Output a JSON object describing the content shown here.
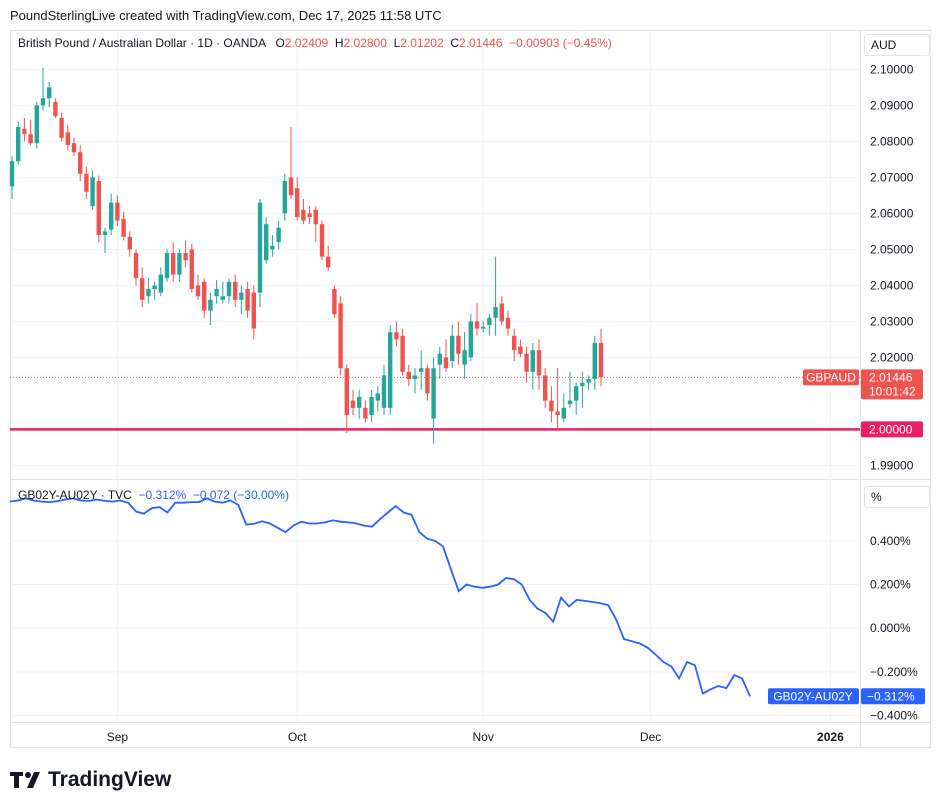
{
  "header": {
    "title": "PoundSterlingLive created with TradingView.com, Dec 17, 2025 11:58 UTC"
  },
  "main_pane": {
    "instrument": "British Pound / Australian Dollar · 1D · OANDA",
    "o_label": "O",
    "o_value": "2.02409",
    "h_label": "H",
    "h_value": "2.02800",
    "l_label": "L",
    "l_value": "2.01202",
    "c_label": "C",
    "c_value": "2.01446",
    "change": "−0.00903 (−0.45%)",
    "unit": "AUD",
    "price_tag_name": "GBPAUD",
    "price_tag_value": "2.01446",
    "countdown": "10:01:42",
    "level_label": "2.00000"
  },
  "lower_pane": {
    "instrument": "GB02Y-AU02Y · TVC",
    "value": "−0.312%",
    "change": "−0.072 (−30.00%)",
    "unit": "%",
    "tag_name": "GB02Y-AU02Y",
    "tag_value": "−0.312%"
  },
  "brand": {
    "name": "TradingView"
  },
  "colors": {
    "up": "#26a69a",
    "down": "#ef5350",
    "line": "#2962ff",
    "level": "#e91e63"
  },
  "chart_data": [
    {
      "type": "candlestick",
      "title": "British Pound / Australian Dollar · 1D · OANDA",
      "x_ticks": [
        "Sep",
        "Oct",
        "Nov",
        "Dec",
        "2026"
      ],
      "y_ticks": [
        "2.10000",
        "2.09000",
        "2.08000",
        "2.07000",
        "2.06000",
        "2.05000",
        "2.04000",
        "2.03000",
        "2.02000",
        "1.99000"
      ],
      "ylim": [
        1.9865,
        2.104
      ],
      "horizontal_line": 2.0,
      "last_close": 2.01446,
      "ohlc": [
        [
          2.0675,
          2.076,
          2.064,
          2.0745
        ],
        [
          2.0745,
          2.0855,
          2.0735,
          2.084
        ],
        [
          2.0835,
          2.0865,
          2.08,
          2.082
        ],
        [
          2.082,
          2.086,
          2.079,
          2.0795
        ],
        [
          2.0795,
          2.091,
          2.078,
          2.09
        ],
        [
          2.09,
          2.1005,
          2.0885,
          2.092
        ],
        [
          2.092,
          2.0965,
          2.0895,
          2.095
        ],
        [
          2.091,
          2.092,
          2.0865,
          2.087
        ],
        [
          2.0865,
          2.088,
          2.08,
          2.081
        ],
        [
          2.0825,
          2.0845,
          2.0775,
          2.079
        ],
        [
          2.0795,
          2.081,
          2.076,
          2.077
        ],
        [
          2.077,
          2.079,
          2.069,
          2.071
        ],
        [
          2.071,
          2.073,
          2.064,
          2.066
        ],
        [
          2.062,
          2.072,
          2.061,
          2.07
        ],
        [
          2.069,
          2.0705,
          2.052,
          2.054
        ],
        [
          2.054,
          2.056,
          2.049,
          2.055
        ],
        [
          2.0555,
          2.0655,
          2.054,
          2.063
        ],
        [
          2.063,
          2.065,
          2.0565,
          2.058
        ],
        [
          2.0585,
          2.0605,
          2.0525,
          2.0535
        ],
        [
          2.0535,
          2.055,
          2.048,
          2.05
        ],
        [
          2.049,
          2.05,
          2.04,
          2.042
        ],
        [
          2.042,
          2.045,
          2.034,
          2.036
        ],
        [
          2.037,
          2.042,
          2.035,
          2.039
        ],
        [
          2.039,
          2.041,
          2.036,
          2.04
        ],
        [
          2.038,
          2.045,
          2.037,
          2.043
        ],
        [
          2.042,
          2.05,
          2.041,
          2.049
        ],
        [
          2.049,
          2.052,
          2.041,
          2.043
        ],
        [
          2.043,
          2.05,
          2.041,
          2.049
        ],
        [
          2.049,
          2.0525,
          2.045,
          2.047
        ],
        [
          2.05,
          2.0515,
          2.038,
          2.039
        ],
        [
          2.04,
          2.043,
          2.036,
          2.037
        ],
        [
          2.041,
          2.042,
          2.031,
          2.033
        ],
        [
          2.033,
          2.038,
          2.029,
          2.036
        ],
        [
          2.037,
          2.0415,
          2.035,
          2.039
        ],
        [
          2.036,
          2.041,
          2.035,
          2.037
        ],
        [
          2.037,
          2.042,
          2.035,
          2.041
        ],
        [
          2.041,
          2.043,
          2.034,
          2.036
        ],
        [
          2.036,
          2.04,
          2.032,
          2.038
        ],
        [
          2.039,
          2.041,
          2.031,
          2.033
        ],
        [
          2.038,
          2.04,
          2.025,
          2.028
        ],
        [
          2.038,
          2.064,
          2.034,
          2.063
        ],
        [
          2.047,
          2.059,
          2.046,
          2.057
        ],
        [
          2.05,
          2.054,
          2.048,
          2.051
        ],
        [
          2.052,
          2.058,
          2.05,
          2.056
        ],
        [
          2.06,
          2.071,
          2.058,
          2.069
        ],
        [
          2.07,
          2.084,
          2.064,
          2.065
        ],
        [
          2.067,
          2.07,
          2.058,
          2.059
        ],
        [
          2.061,
          2.064,
          2.057,
          2.058
        ],
        [
          2.06,
          2.062,
          2.057,
          2.059
        ],
        [
          2.061,
          2.062,
          2.052,
          2.057
        ],
        [
          2.057,
          2.058,
          2.047,
          2.048
        ],
        [
          2.048,
          2.051,
          2.044,
          2.045
        ],
        [
          2.039,
          2.04,
          2.031,
          2.032
        ],
        [
          2.035,
          2.037,
          2.015,
          2.017
        ],
        [
          2.017,
          2.018,
          1.999,
          2.004
        ],
        [
          2.008,
          2.011,
          2.004,
          2.006
        ],
        [
          2.006,
          2.011,
          2.003,
          2.009
        ],
        [
          2.006,
          2.008,
          2.002,
          2.003
        ],
        [
          2.004,
          2.011,
          2.002,
          2.009
        ],
        [
          2.008,
          2.012,
          2.005,
          2.01
        ],
        [
          2.006,
          2.018,
          2.004,
          2.015
        ],
        [
          2.006,
          2.029,
          2.004,
          2.027
        ],
        [
          2.027,
          2.03,
          2.023,
          2.025
        ],
        [
          2.026,
          2.028,
          2.015,
          2.016
        ],
        [
          2.016,
          2.018,
          2.012,
          2.014
        ],
        [
          2.014,
          2.017,
          2.01,
          2.015
        ],
        [
          2.016,
          2.022,
          2.011,
          2.017
        ],
        [
          2.017,
          2.018,
          2.008,
          2.01
        ],
        [
          2.003,
          2.02,
          1.996,
          2.017
        ],
        [
          2.018,
          2.023,
          2.014,
          2.021
        ],
        [
          2.02,
          2.025,
          2.016,
          2.017
        ],
        [
          2.019,
          2.029,
          2.017,
          2.026
        ],
        [
          2.026,
          2.03,
          2.018,
          2.021
        ],
        [
          2.018,
          2.027,
          2.014,
          2.022
        ],
        [
          2.02,
          2.032,
          2.019,
          2.03
        ],
        [
          2.03,
          2.035,
          2.026,
          2.028
        ],
        [
          2.028,
          2.03,
          2.027,
          2.0285
        ],
        [
          2.029,
          2.032,
          2.026,
          2.031
        ],
        [
          2.031,
          2.048,
          2.026,
          2.034
        ],
        [
          2.035,
          2.037,
          2.029,
          2.03
        ],
        [
          2.031,
          2.033,
          2.026,
          2.028
        ],
        [
          2.026,
          2.028,
          2.019,
          2.022
        ],
        [
          2.023,
          2.025,
          2.02,
          2.021
        ],
        [
          2.021,
          2.023,
          2.013,
          2.016
        ],
        [
          2.016,
          2.024,
          2.011,
          2.022
        ],
        [
          2.022,
          2.025,
          2.011,
          2.015
        ],
        [
          2.015,
          2.017,
          2.006,
          2.008
        ],
        [
          2.008,
          2.012,
          2.002,
          2.005
        ],
        [
          2.005,
          2.017,
          2.0,
          2.004
        ],
        [
          2.003,
          2.01,
          2.002,
          2.006
        ],
        [
          2.007,
          2.016,
          2.006,
          2.008
        ],
        [
          2.008,
          2.013,
          2.004,
          2.012
        ],
        [
          2.012,
          2.016,
          2.006,
          2.013
        ],
        [
          2.013,
          2.015,
          2.011,
          2.014
        ],
        [
          2.014,
          2.026,
          2.011,
          2.024
        ],
        [
          2.024,
          2.028,
          2.012,
          2.0145
        ]
      ]
    },
    {
      "type": "line",
      "title": "GB02Y-AU02Y · TVC",
      "x_ticks": [
        "Sep",
        "Oct",
        "Nov",
        "Dec",
        "2026"
      ],
      "y_ticks": [
        "0.400%",
        "0.200%",
        "0.000%",
        "−0.200%",
        "−0.400%"
      ],
      "ylim": [
        -0.43,
        0.67
      ],
      "last_value": -0.312,
      "series": [
        {
          "values": [
            0.58,
            0.585,
            0.595,
            0.585,
            0.58,
            0.578,
            0.582,
            0.59,
            0.595,
            0.585,
            0.583,
            0.59,
            0.584,
            0.58,
            0.585,
            0.575,
            0.535,
            0.525,
            0.55,
            0.555,
            0.53,
            0.575,
            0.575,
            0.578,
            0.578,
            0.595,
            0.58,
            0.575,
            0.585,
            0.565,
            0.475,
            0.478,
            0.49,
            0.48,
            0.46,
            0.44,
            0.47,
            0.488,
            0.48,
            0.48,
            0.485,
            0.494,
            0.488,
            0.485,
            0.48,
            0.47,
            0.465,
            0.5,
            0.53,
            0.56,
            0.53,
            0.52,
            0.44,
            0.41,
            0.4,
            0.375,
            0.27,
            0.17,
            0.2,
            0.19,
            0.185,
            0.19,
            0.2,
            0.23,
            0.225,
            0.2,
            0.13,
            0.09,
            0.07,
            0.03,
            0.14,
            0.1,
            0.13,
            0.125,
            0.12,
            0.115,
            0.105,
            0.04,
            -0.05,
            -0.06,
            -0.07,
            -0.09,
            -0.12,
            -0.155,
            -0.175,
            -0.23,
            -0.155,
            -0.17,
            -0.3,
            -0.28,
            -0.265,
            -0.275,
            -0.215,
            -0.23,
            -0.312
          ]
        }
      ]
    }
  ]
}
